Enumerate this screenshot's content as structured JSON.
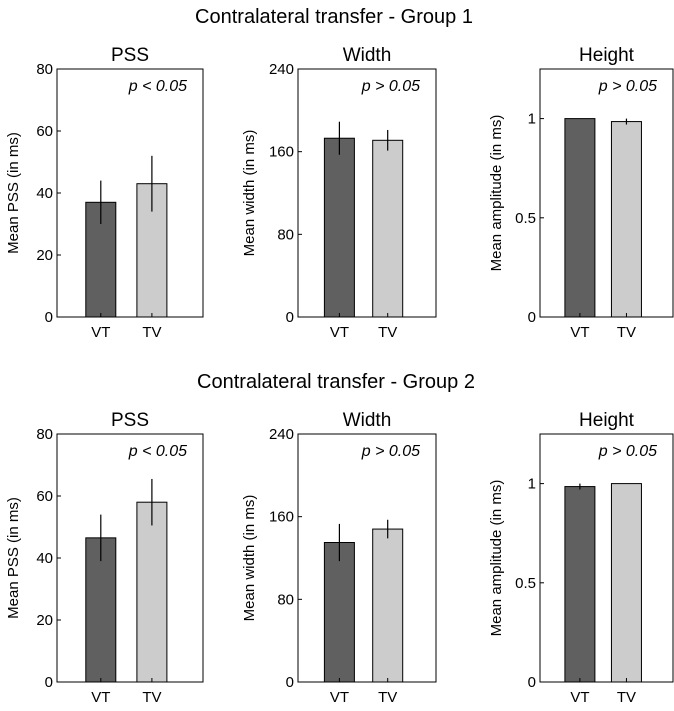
{
  "chart_data": [
    {
      "type": "bar",
      "group_title": "Contralateral transfer - Group 1",
      "title": "PSS",
      "ylabel": "Mean PSS (in ms)",
      "annotation": "p < 0.05",
      "categories": [
        "VT",
        "TV"
      ],
      "values": [
        37,
        43
      ],
      "errors": [
        7,
        9
      ],
      "ylim": [
        0,
        80
      ],
      "yticks": [
        "0",
        "20",
        "40",
        "60",
        "80"
      ],
      "colors": [
        "#606060",
        "#cccccc"
      ]
    },
    {
      "type": "bar",
      "group_title": "Contralateral transfer - Group 1",
      "title": "Width",
      "ylabel": "Mean width (in ms)",
      "annotation": "p > 0.05",
      "categories": [
        "VT",
        "TV"
      ],
      "values": [
        173,
        171
      ],
      "errors": [
        16,
        10
      ],
      "ylim": [
        0,
        240
      ],
      "yticks": [
        "0",
        "80",
        "160",
        "240"
      ],
      "colors": [
        "#606060",
        "#cccccc"
      ]
    },
    {
      "type": "bar",
      "group_title": "Contralateral transfer - Group 1",
      "title": "Height",
      "ylabel": "Mean amplitude (in ms)",
      "annotation": "p > 0.05",
      "categories": [
        "VT",
        "TV"
      ],
      "values": [
        1.0,
        0.985
      ],
      "errors": [
        0.0,
        0.015
      ],
      "ylim": [
        0,
        1.25
      ],
      "yticks": [
        "0",
        "0.5",
        "1"
      ],
      "colors": [
        "#606060",
        "#cccccc"
      ]
    },
    {
      "type": "bar",
      "group_title": "Contralateral transfer - Group 2",
      "title": "PSS",
      "ylabel": "Mean PSS (in ms)",
      "annotation": "p < 0.05",
      "categories": [
        "VT",
        "TV"
      ],
      "values": [
        46.5,
        58
      ],
      "errors": [
        7.5,
        7.5
      ],
      "ylim": [
        0,
        80
      ],
      "yticks": [
        "0",
        "20",
        "40",
        "60",
        "80"
      ],
      "colors": [
        "#606060",
        "#cccccc"
      ]
    },
    {
      "type": "bar",
      "group_title": "Contralateral transfer - Group 2",
      "title": "Width",
      "ylabel": "Mean width (in ms)",
      "annotation": "p > 0.05",
      "categories": [
        "VT",
        "TV"
      ],
      "values": [
        135,
        148
      ],
      "errors": [
        18,
        9
      ],
      "ylim": [
        0,
        240
      ],
      "yticks": [
        "0",
        "80",
        "160",
        "240"
      ],
      "colors": [
        "#606060",
        "#cccccc"
      ]
    },
    {
      "type": "bar",
      "group_title": "Contralateral transfer - Group 2",
      "title": "Height",
      "ylabel": "Mean amplitude (in ms)",
      "annotation": "p > 0.05",
      "categories": [
        "VT",
        "TV"
      ],
      "values": [
        0.985,
        1.0
      ],
      "errors": [
        0.015,
        0.0
      ],
      "ylim": [
        0,
        1.25
      ],
      "yticks": [
        "0",
        "0.5",
        "1"
      ],
      "colors": [
        "#606060",
        "#cccccc"
      ]
    }
  ],
  "group_titles": [
    "Contralateral transfer - Group 1",
    "Contralateral transfer - Group 2"
  ]
}
